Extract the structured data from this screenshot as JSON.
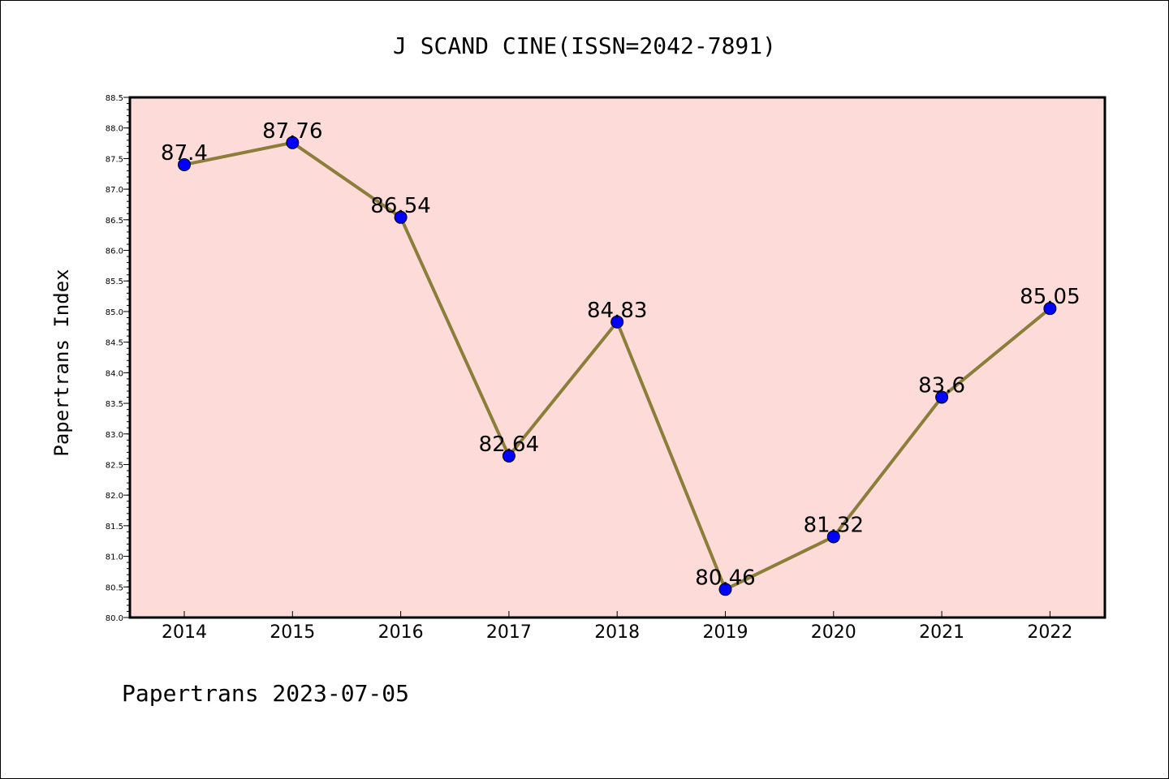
{
  "chart_data": {
    "type": "line",
    "title": "J SCAND CINE(ISSN=2042-7891)",
    "xlabel": "",
    "ylabel": "Papertrans Index",
    "categories": [
      "2014",
      "2015",
      "2016",
      "2017",
      "2018",
      "2019",
      "2020",
      "2021",
      "2022"
    ],
    "series": [
      {
        "values": [
          87.4,
          87.76,
          86.54,
          82.64,
          84.83,
          80.46,
          81.32,
          83.6,
          85.05
        ],
        "data_labels": [
          "87.4",
          "87.76",
          "86.54",
          "82.64",
          "84.83",
          "80.46",
          "81.32",
          "83.6",
          "85.05"
        ]
      }
    ],
    "ylim": [
      80.0,
      88.5
    ],
    "yticks": [
      "80.0",
      "80.5",
      "81.0",
      "81.5",
      "82.0",
      "82.5",
      "83.0",
      "83.5",
      "84.0",
      "84.5",
      "85.0",
      "85.5",
      "86.0",
      "86.5",
      "87.0",
      "87.5",
      "88.0",
      "88.5"
    ],
    "grid": false,
    "colors": {
      "plot_background": "#fddbd8",
      "line": "#8b7d3a",
      "marker": "#0000ff"
    },
    "footer": "Papertrans 2023-07-05"
  }
}
